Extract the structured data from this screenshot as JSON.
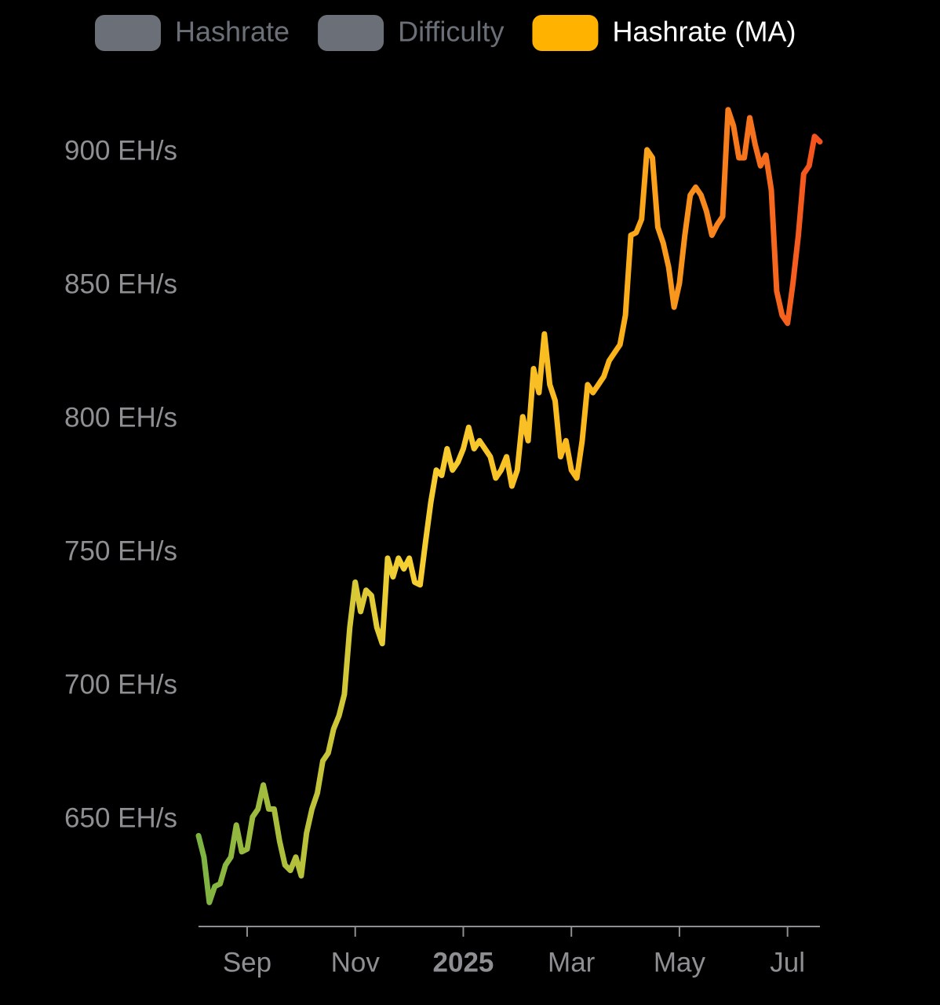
{
  "chart_data": {
    "type": "line",
    "categories": [
      null,
      null,
      null,
      null,
      null,
      null,
      null,
      null,
      null,
      "Sep",
      null,
      null,
      null,
      null,
      null,
      null,
      null,
      null,
      null,
      null,
      null,
      null,
      null,
      null,
      null,
      null,
      null,
      null,
      null,
      "Nov",
      null,
      null,
      null,
      null,
      null,
      null,
      null,
      null,
      null,
      null,
      null,
      null,
      null,
      null,
      null,
      null,
      null,
      null,
      null,
      "2025",
      null,
      null,
      null,
      null,
      null,
      null,
      null,
      null,
      null,
      null,
      null,
      null,
      null,
      null,
      null,
      null,
      null,
      null,
      null,
      "Mar",
      null,
      null,
      null,
      null,
      null,
      null,
      null,
      null,
      null,
      null,
      null,
      null,
      null,
      null,
      null,
      null,
      null,
      null,
      null,
      "May",
      null,
      null,
      null,
      null,
      null,
      null,
      null,
      null,
      null,
      null,
      null,
      null,
      null,
      null,
      null,
      null,
      null,
      null,
      null,
      "Jul",
      null,
      null,
      null,
      null,
      null,
      null
    ],
    "series": [
      {
        "name": "Hashrate",
        "color": "#6b6f78",
        "visible": false
      },
      {
        "name": "Difficulty",
        "color": "#6b6f78",
        "visible": false
      },
      {
        "name": "Hashrate (MA)",
        "color": "#ffb300",
        "visible": true,
        "gradient": [
          "#7cb342",
          "#f5d033",
          "#fbb41a",
          "#f4511e"
        ],
        "values": [
          644,
          636,
          619,
          625,
          626,
          633,
          636,
          648,
          638,
          639,
          651,
          654,
          663,
          654,
          654,
          642,
          633,
          631,
          636,
          629,
          645,
          654,
          660,
          672,
          675,
          684,
          689,
          697,
          722,
          739,
          728,
          736,
          734,
          722,
          716,
          748,
          741,
          748,
          744,
          748,
          739,
          738,
          754,
          769,
          781,
          779,
          789,
          781,
          784,
          789,
          797,
          789,
          792,
          789,
          786,
          778,
          781,
          786,
          775,
          781,
          801,
          792,
          819,
          810,
          832,
          813,
          807,
          786,
          792,
          781,
          778,
          792,
          813,
          810,
          813,
          816,
          822,
          825,
          828,
          839,
          869,
          870,
          875,
          901,
          898,
          872,
          866,
          857,
          842,
          851,
          869,
          884,
          887,
          884,
          878,
          869,
          873,
          876,
          916,
          910,
          898,
          898,
          913,
          903,
          895,
          899,
          886,
          848,
          839,
          836,
          851,
          869,
          892,
          895,
          906,
          904
        ]
      }
    ],
    "ylim": [
      610,
      928
    ],
    "yticks": [
      {
        "value": 650,
        "label": "650 EH/s"
      },
      {
        "value": 700,
        "label": "700 EH/s"
      },
      {
        "value": 750,
        "label": "750 EH/s"
      },
      {
        "value": 800,
        "label": "800 EH/s"
      },
      {
        "value": 850,
        "label": "850 EH/s"
      },
      {
        "value": 900,
        "label": "900 EH/s"
      }
    ],
    "grid": false
  }
}
